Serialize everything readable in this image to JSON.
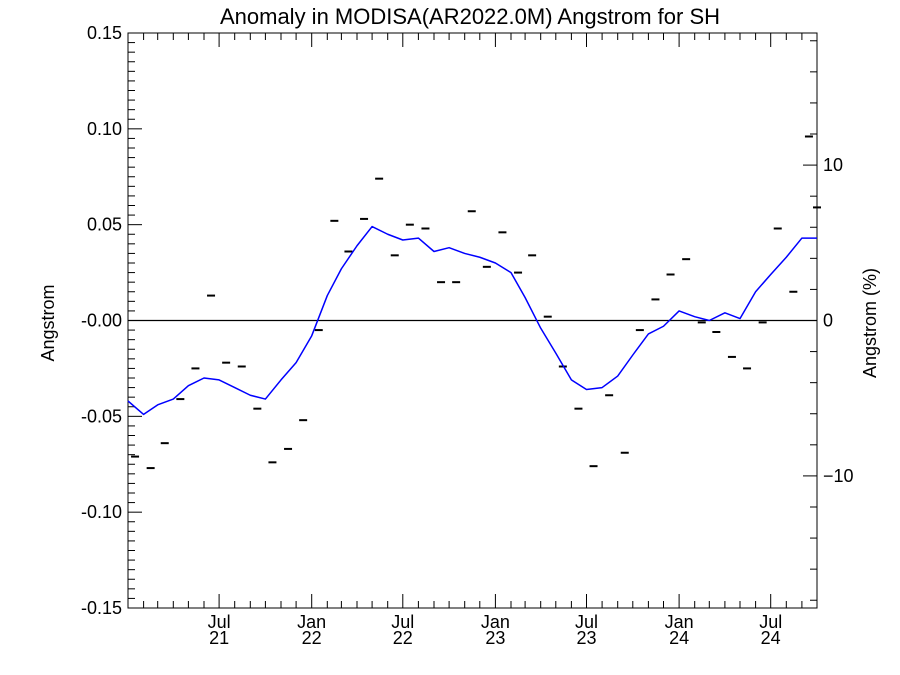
{
  "chart_data": {
    "type": "line",
    "title": "Anomaly in MODISA(AR2022.0M) Angstrom for SH",
    "ylabel": "Angstrom",
    "y2label": "Angstrom (%)",
    "ylim": [
      -0.15,
      0.15
    ],
    "y2lim": [
      -18.5,
      18.5
    ],
    "xlim": [
      "2021-01-01",
      "2024-10-01"
    ],
    "yticks": [
      "0.15",
      "0.10",
      "0.05",
      "-0.00",
      "-0.05",
      "-0.10",
      "-0.15"
    ],
    "y2ticks": [
      "10",
      "0",
      "−10"
    ],
    "xticks": [
      {
        "date": "2021-07-01",
        "month": "Jul",
        "year": "21"
      },
      {
        "date": "2022-01-01",
        "month": "Jan",
        "year": "22"
      },
      {
        "date": "2022-07-01",
        "month": "Jul",
        "year": "22"
      },
      {
        "date": "2023-01-01",
        "month": "Jan",
        "year": "23"
      },
      {
        "date": "2023-07-01",
        "month": "Jul",
        "year": "23"
      },
      {
        "date": "2024-01-01",
        "month": "Jan",
        "year": "24"
      },
      {
        "date": "2024-07-01",
        "month": "Jul",
        "year": "24"
      }
    ],
    "reference_line": 0,
    "grid": false,
    "series": [
      {
        "kind": "monthly-anomaly-markers",
        "color": "#000000",
        "points": [
          {
            "x": "2021-01-15",
            "y": -0.071
          },
          {
            "x": "2021-02-15",
            "y": -0.077
          },
          {
            "x": "2021-03-15",
            "y": -0.064
          },
          {
            "x": "2021-04-15",
            "y": -0.041
          },
          {
            "x": "2021-05-15",
            "y": -0.025
          },
          {
            "x": "2021-06-15",
            "y": 0.013
          },
          {
            "x": "2021-07-15",
            "y": -0.022
          },
          {
            "x": "2021-08-15",
            "y": -0.024
          },
          {
            "x": "2021-09-15",
            "y": -0.046
          },
          {
            "x": "2021-10-15",
            "y": -0.074
          },
          {
            "x": "2021-11-15",
            "y": -0.067
          },
          {
            "x": "2021-12-15",
            "y": -0.052
          },
          {
            "x": "2022-01-15",
            "y": -0.005
          },
          {
            "x": "2022-02-15",
            "y": 0.052
          },
          {
            "x": "2022-03-15",
            "y": 0.036
          },
          {
            "x": "2022-04-15",
            "y": 0.053
          },
          {
            "x": "2022-05-15",
            "y": 0.074
          },
          {
            "x": "2022-06-15",
            "y": 0.034
          },
          {
            "x": "2022-07-15",
            "y": 0.05
          },
          {
            "x": "2022-08-15",
            "y": 0.048
          },
          {
            "x": "2022-09-15",
            "y": 0.02
          },
          {
            "x": "2022-10-15",
            "y": 0.02
          },
          {
            "x": "2022-11-15",
            "y": 0.057
          },
          {
            "x": "2022-12-15",
            "y": 0.028
          },
          {
            "x": "2023-01-15",
            "y": 0.046
          },
          {
            "x": "2023-02-15",
            "y": 0.025
          },
          {
            "x": "2023-03-15",
            "y": 0.034
          },
          {
            "x": "2023-04-15",
            "y": 0.002
          },
          {
            "x": "2023-05-15",
            "y": -0.024
          },
          {
            "x": "2023-06-15",
            "y": -0.046
          },
          {
            "x": "2023-07-15",
            "y": -0.076
          },
          {
            "x": "2023-08-15",
            "y": -0.039
          },
          {
            "x": "2023-09-15",
            "y": -0.069
          },
          {
            "x": "2023-10-15",
            "y": -0.005
          },
          {
            "x": "2023-11-15",
            "y": 0.011
          },
          {
            "x": "2023-12-15",
            "y": 0.024
          },
          {
            "x": "2024-01-15",
            "y": 0.032
          },
          {
            "x": "2024-02-15",
            "y": -0.001
          },
          {
            "x": "2024-03-15",
            "y": -0.006
          },
          {
            "x": "2024-04-15",
            "y": -0.019
          },
          {
            "x": "2024-05-15",
            "y": -0.025
          },
          {
            "x": "2024-06-15",
            "y": -0.001
          },
          {
            "x": "2024-07-15",
            "y": 0.048
          },
          {
            "x": "2024-08-15",
            "y": 0.015
          },
          {
            "x": "2024-09-15",
            "y": 0.096
          },
          {
            "x": "2024-10-01",
            "y": 0.059
          }
        ]
      },
      {
        "kind": "running-mean-line",
        "color": "#0000ff",
        "points": [
          {
            "x": "2021-01-01",
            "y": -0.042
          },
          {
            "x": "2021-02-01",
            "y": -0.049
          },
          {
            "x": "2021-03-01",
            "y": -0.044
          },
          {
            "x": "2021-04-01",
            "y": -0.041
          },
          {
            "x": "2021-05-01",
            "y": -0.034
          },
          {
            "x": "2021-06-01",
            "y": -0.03
          },
          {
            "x": "2021-07-01",
            "y": -0.031
          },
          {
            "x": "2021-08-01",
            "y": -0.035
          },
          {
            "x": "2021-09-01",
            "y": -0.039
          },
          {
            "x": "2021-10-01",
            "y": -0.041
          },
          {
            "x": "2021-11-01",
            "y": -0.031
          },
          {
            "x": "2021-12-01",
            "y": -0.022
          },
          {
            "x": "2022-01-01",
            "y": -0.008
          },
          {
            "x": "2022-02-01",
            "y": 0.013
          },
          {
            "x": "2022-03-01",
            "y": 0.027
          },
          {
            "x": "2022-04-01",
            "y": 0.039
          },
          {
            "x": "2022-05-01",
            "y": 0.049
          },
          {
            "x": "2022-06-01",
            "y": 0.045
          },
          {
            "x": "2022-07-01",
            "y": 0.042
          },
          {
            "x": "2022-08-01",
            "y": 0.043
          },
          {
            "x": "2022-09-01",
            "y": 0.036
          },
          {
            "x": "2022-10-01",
            "y": 0.038
          },
          {
            "x": "2022-11-01",
            "y": 0.035
          },
          {
            "x": "2022-12-01",
            "y": 0.033
          },
          {
            "x": "2023-01-01",
            "y": 0.03
          },
          {
            "x": "2023-02-01",
            "y": 0.025
          },
          {
            "x": "2023-03-01",
            "y": 0.012
          },
          {
            "x": "2023-04-01",
            "y": -0.004
          },
          {
            "x": "2023-05-01",
            "y": -0.017
          },
          {
            "x": "2023-06-01",
            "y": -0.031
          },
          {
            "x": "2023-07-01",
            "y": -0.036
          },
          {
            "x": "2023-08-01",
            "y": -0.035
          },
          {
            "x": "2023-09-01",
            "y": -0.029
          },
          {
            "x": "2023-10-01",
            "y": -0.018
          },
          {
            "x": "2023-11-01",
            "y": -0.007
          },
          {
            "x": "2023-12-01",
            "y": -0.003
          },
          {
            "x": "2024-01-01",
            "y": 0.005
          },
          {
            "x": "2024-02-01",
            "y": 0.002
          },
          {
            "x": "2024-03-01",
            "y": 0.0
          },
          {
            "x": "2024-04-01",
            "y": 0.004
          },
          {
            "x": "2024-05-01",
            "y": 0.001
          },
          {
            "x": "2024-06-01",
            "y": 0.015
          },
          {
            "x": "2024-07-01",
            "y": 0.024
          },
          {
            "x": "2024-08-01",
            "y": 0.033
          },
          {
            "x": "2024-09-01",
            "y": 0.043
          },
          {
            "x": "2024-10-01",
            "y": 0.043
          }
        ]
      }
    ]
  }
}
